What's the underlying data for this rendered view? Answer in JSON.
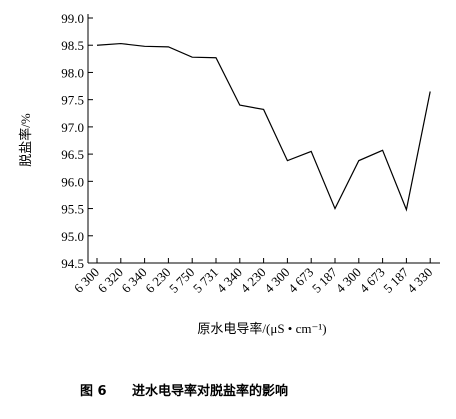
{
  "chart_data": {
    "type": "line",
    "y_label": "脱盐率/%",
    "x_label": "原水电导率/(μS • cm⁻¹)",
    "categories": [
      "6 300",
      "6 320",
      "6 340",
      "6 230",
      "5 750",
      "5 731",
      "4 340",
      "4 230",
      "4 300",
      "4 673",
      "5 187",
      "4 300",
      "4 673",
      "5 187",
      "4 330"
    ],
    "values": [
      98.5,
      98.53,
      98.48,
      98.47,
      98.28,
      98.27,
      97.4,
      97.32,
      96.38,
      96.55,
      95.5,
      96.38,
      96.57,
      95.48,
      97.65
    ],
    "color": "#000000",
    "ylim": [
      94.5,
      99
    ],
    "yticks": [
      94.5,
      {
        "value": 95,
        "label": "95.0"
      },
      95.5,
      {
        "value": 96,
        "label": "96.0"
      },
      96.5,
      {
        "value": 97,
        "label": "97.0"
      },
      97.5,
      {
        "value": 98,
        "label": "98.0"
      },
      98.5,
      {
        "value": 99,
        "label": "99.0"
      }
    ]
  },
  "figure_caption": {
    "number": "图 6",
    "text": "进水电导率对脱盐率的影响"
  }
}
